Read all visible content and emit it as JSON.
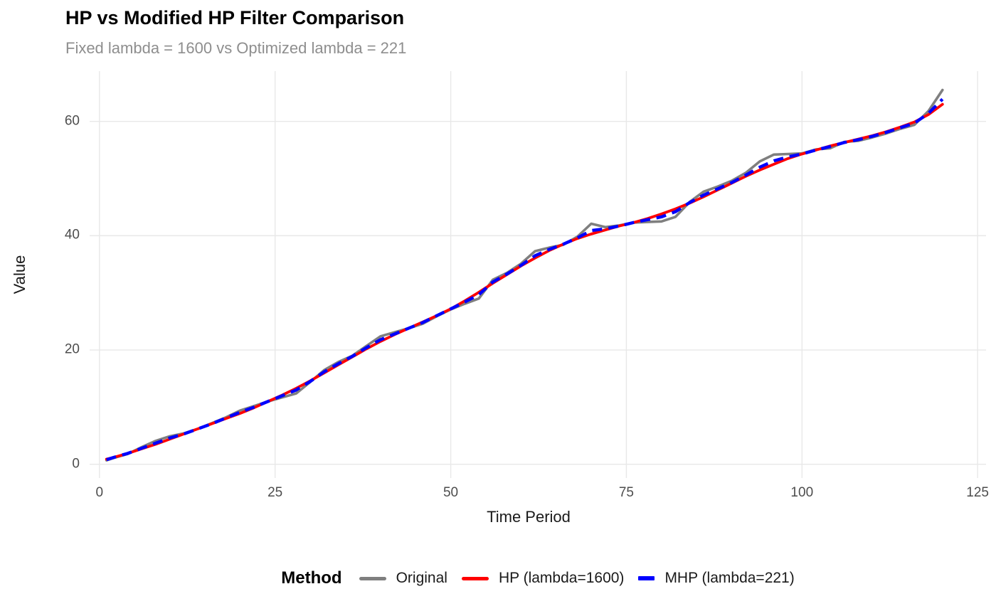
{
  "title": "HP vs Modified HP Filter Comparison",
  "subtitle": "Fixed lambda = 1600 vs Optimized lambda = 221",
  "colors": {
    "background": "#ffffff",
    "gridline": "#e8e8e8",
    "title_text": "#000000",
    "subtitle_text": "#8e8e8e",
    "axis_title_text": "#1a1a1a",
    "tick_text": "#4d4d4d",
    "original": "#7f7f7f",
    "hp": "#ff0000",
    "mhp": "#0000ff"
  },
  "chart_data": {
    "type": "line",
    "title": "HP vs Modified HP Filter Comparison",
    "subtitle": "Fixed lambda = 1600 vs Optimized lambda = 221",
    "xlabel": "Time Period",
    "ylabel": "Value",
    "legend_title": "Method",
    "legend_position": "bottom",
    "grid": "major-only",
    "x_ticks": [
      0,
      25,
      50,
      75,
      100,
      125
    ],
    "y_ticks": [
      0,
      20,
      40,
      60
    ],
    "xlim": [
      -1.4,
      126.2
    ],
    "ylim": [
      -2.4,
      68.8
    ],
    "x": [
      1,
      2,
      4,
      6,
      8,
      10,
      12,
      14,
      16,
      18,
      20,
      22,
      24,
      26,
      28,
      30,
      32,
      34,
      36,
      38,
      40,
      42,
      44,
      46,
      48,
      50,
      52,
      54,
      56,
      58,
      60,
      62,
      64,
      66,
      68,
      70,
      72,
      74,
      76,
      78,
      80,
      82,
      84,
      86,
      88,
      90,
      92,
      94,
      96,
      98,
      100,
      102,
      104,
      106,
      108,
      110,
      112,
      114,
      116,
      118,
      120
    ],
    "series": [
      {
        "name": "Original",
        "color": "#7f7f7f",
        "style": "solid",
        "width": 3.6,
        "values": [
          0.7,
          1.1,
          1.8,
          3.0,
          4.1,
          4.9,
          5.4,
          6.2,
          7.2,
          8.2,
          9.4,
          10.2,
          11.0,
          11.7,
          12.4,
          14.4,
          16.5,
          17.9,
          19.0,
          20.7,
          22.4,
          23.1,
          23.8,
          24.6,
          25.9,
          27.1,
          28.1,
          29.0,
          32.3,
          33.5,
          35.1,
          37.3,
          37.9,
          38.4,
          39.8,
          42.1,
          41.5,
          41.8,
          42.3,
          42.4,
          42.5,
          43.3,
          45.9,
          47.7,
          48.6,
          49.6,
          51.0,
          53.0,
          54.2,
          54.3,
          54.4,
          55.1,
          55.3,
          56.4,
          56.6,
          57.2,
          57.9,
          58.7,
          59.4,
          61.8,
          65.5
        ]
      },
      {
        "name": "HP (lambda=1600)",
        "color": "#ff0000",
        "style": "solid",
        "width": 3.8,
        "values": [
          0.9,
          1.2,
          1.9,
          2.7,
          3.5,
          4.4,
          5.3,
          6.2,
          7.1,
          8.0,
          8.9,
          9.9,
          11.0,
          12.1,
          13.3,
          14.6,
          16.0,
          17.4,
          18.8,
          20.2,
          21.5,
          22.7,
          23.8,
          24.9,
          26.0,
          27.2,
          28.6,
          30.1,
          31.7,
          33.2,
          34.7,
          36.1,
          37.4,
          38.5,
          39.5,
          40.3,
          41.0,
          41.7,
          42.3,
          43.0,
          43.8,
          44.7,
          45.7,
          46.8,
          48.0,
          49.2,
          50.4,
          51.5,
          52.5,
          53.5,
          54.3,
          55.0,
          55.7,
          56.3,
          56.9,
          57.5,
          58.2,
          59.0,
          59.9,
          61.2,
          63.0
        ]
      },
      {
        "name": "MHP (lambda=221)",
        "color": "#0000ff",
        "style": "dashed",
        "width": 4.4,
        "values": [
          0.8,
          1.2,
          1.9,
          2.8,
          3.7,
          4.6,
          5.3,
          6.2,
          7.1,
          8.1,
          9.1,
          10.0,
          11.0,
          12.0,
          13.0,
          14.5,
          16.2,
          17.6,
          18.9,
          20.4,
          21.8,
          22.8,
          23.8,
          24.8,
          26.0,
          27.2,
          28.4,
          29.7,
          31.9,
          33.3,
          34.8,
          36.5,
          37.6,
          38.5,
          39.6,
          40.9,
          41.2,
          41.7,
          42.3,
          42.8,
          43.3,
          44.2,
          45.8,
          47.1,
          48.2,
          49.3,
          50.6,
          52.0,
          53.1,
          53.8,
          54.3,
          55.0,
          55.6,
          56.3,
          56.8,
          57.4,
          58.1,
          58.9,
          59.7,
          61.4,
          63.9
        ]
      }
    ]
  }
}
